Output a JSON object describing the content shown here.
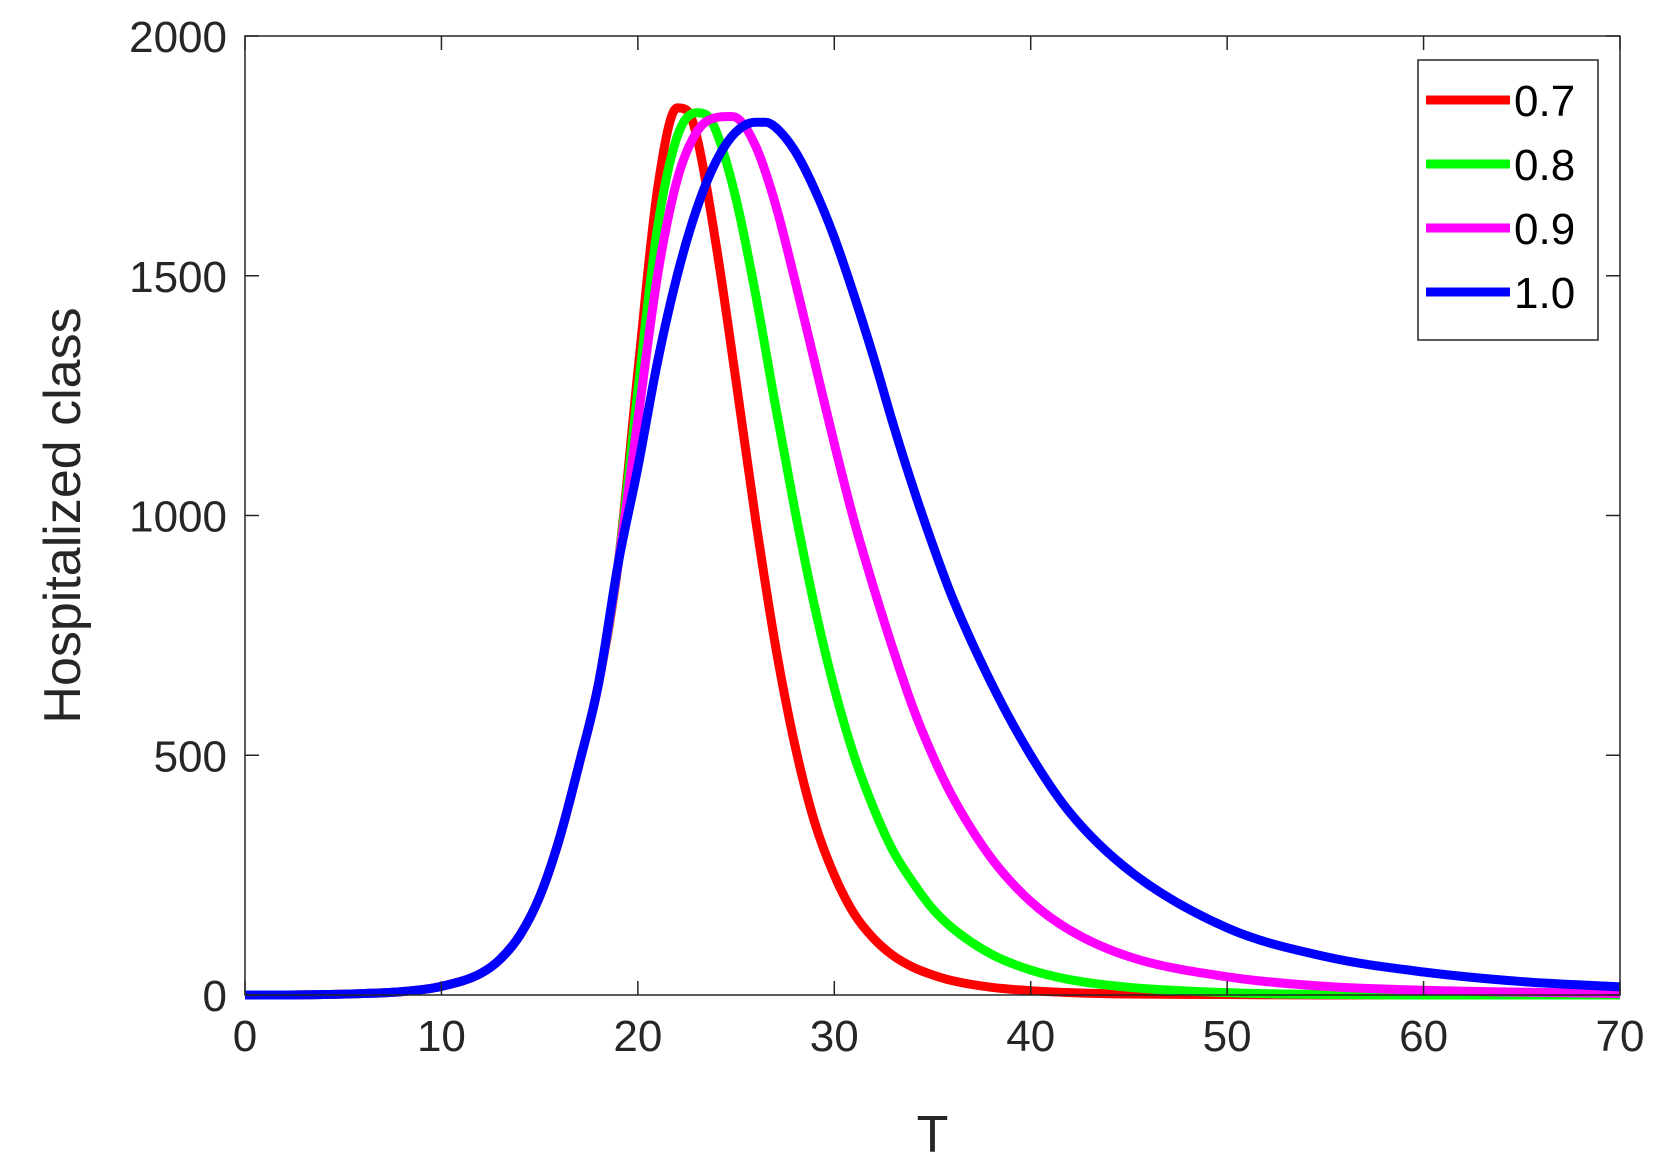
{
  "chart_data": {
    "type": "line",
    "xlabel": "T",
    "ylabel": "Hospitalized class",
    "xlim": [
      0,
      70
    ],
    "ylim": [
      0,
      2000
    ],
    "xticks": [
      0,
      10,
      20,
      30,
      40,
      50,
      60,
      70
    ],
    "yticks": [
      0,
      500,
      1000,
      1500,
      2000
    ],
    "grid": false,
    "legend_position": "top-right",
    "series": [
      {
        "name": "0.7",
        "color": "#ff0000",
        "x": [
          0,
          2,
          4,
          6,
          8,
          10,
          12,
          13,
          14,
          15,
          16,
          17,
          18,
          19,
          20,
          21,
          22,
          22.5,
          23,
          24,
          25,
          26,
          27,
          28,
          29,
          30,
          31,
          32,
          33,
          34,
          35,
          36,
          38,
          40,
          42,
          45,
          50,
          55,
          60,
          70
        ],
        "y": [
          0,
          0,
          1,
          3,
          7,
          18,
          45,
          75,
          125,
          205,
          325,
          480,
          650,
          900,
          1300,
          1680,
          1850,
          1845,
          1790,
          1560,
          1280,
          990,
          730,
          520,
          360,
          250,
          170,
          118,
          82,
          58,
          42,
          30,
          16,
          9,
          5,
          2,
          1,
          0,
          0,
          0
        ]
      },
      {
        "name": "0.8",
        "color": "#00ff00",
        "x": [
          0,
          2,
          4,
          6,
          8,
          10,
          12,
          13,
          14,
          15,
          16,
          17,
          18,
          19,
          20,
          21,
          22,
          23,
          23.5,
          24,
          25,
          26,
          27,
          28,
          29,
          30,
          31,
          32,
          33,
          34,
          35,
          36,
          38,
          40,
          42,
          45,
          50,
          55,
          60,
          70
        ],
        "y": [
          0,
          0,
          1,
          3,
          7,
          18,
          45,
          75,
          125,
          205,
          325,
          480,
          650,
          900,
          1260,
          1600,
          1790,
          1840,
          1835,
          1800,
          1660,
          1460,
          1230,
          1010,
          810,
          640,
          500,
          390,
          300,
          235,
          180,
          140,
          85,
          52,
          32,
          16,
          5,
          1,
          0,
          0
        ]
      },
      {
        "name": "0.9",
        "color": "#ff00ff",
        "x": [
          0,
          2,
          4,
          6,
          8,
          10,
          12,
          13,
          14,
          15,
          16,
          17,
          18,
          19,
          20,
          21,
          22,
          23,
          24,
          24.7,
          25,
          26,
          27,
          28,
          29,
          30,
          31,
          32,
          33,
          34,
          35,
          36,
          38,
          40,
          42,
          45,
          50,
          55,
          60,
          70
        ],
        "y": [
          0,
          0,
          1,
          3,
          7,
          18,
          45,
          75,
          125,
          205,
          325,
          480,
          650,
          900,
          1200,
          1500,
          1700,
          1800,
          1830,
          1832,
          1830,
          1770,
          1650,
          1490,
          1320,
          1150,
          990,
          850,
          720,
          600,
          500,
          415,
          285,
          195,
          135,
          80,
          38,
          18,
          10,
          3
        ]
      },
      {
        "name": "1.0",
        "color": "#0000ff",
        "x": [
          0,
          2,
          4,
          6,
          8,
          10,
          12,
          13,
          14,
          15,
          16,
          17,
          18,
          19,
          20,
          21,
          22,
          23,
          24,
          25,
          26,
          26.5,
          27,
          28,
          29,
          30,
          31,
          32,
          33,
          34,
          35,
          36,
          38,
          40,
          42,
          45,
          50,
          55,
          60,
          65,
          70
        ],
        "y": [
          0,
          0,
          1,
          3,
          7,
          18,
          45,
          75,
          125,
          205,
          325,
          480,
          650,
          900,
          1100,
          1320,
          1500,
          1640,
          1740,
          1800,
          1820,
          1820,
          1810,
          1760,
          1680,
          1580,
          1460,
          1330,
          1190,
          1060,
          940,
          830,
          650,
          500,
          380,
          260,
          140,
          80,
          48,
          28,
          17
        ]
      }
    ]
  }
}
